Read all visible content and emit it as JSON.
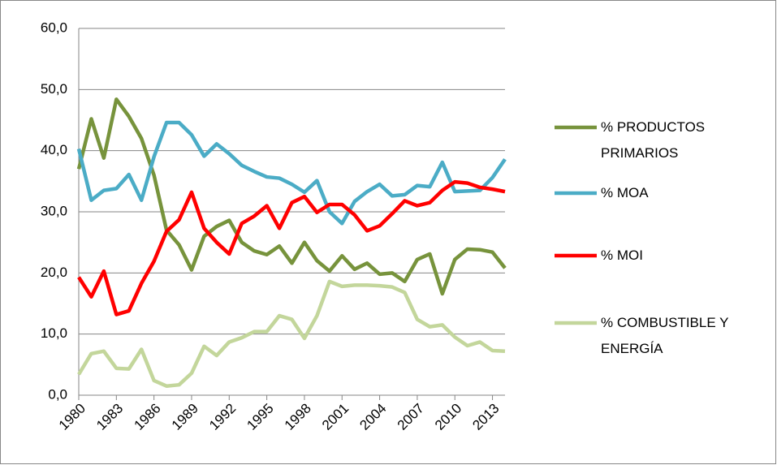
{
  "chart_data": {
    "type": "line",
    "x": [
      1980,
      1981,
      1982,
      1983,
      1984,
      1985,
      1986,
      1987,
      1988,
      1989,
      1990,
      1991,
      1992,
      1993,
      1994,
      1995,
      1996,
      1997,
      1998,
      1999,
      2000,
      2001,
      2002,
      2003,
      2004,
      2005,
      2006,
      2007,
      2008,
      2009,
      2010,
      2011,
      2012,
      2013,
      2014
    ],
    "xlim": [
      1980,
      2014
    ],
    "xticks": [
      1980,
      1983,
      1986,
      1989,
      1992,
      1995,
      1998,
      2001,
      2004,
      2007,
      2010,
      2013
    ],
    "ylim": [
      0,
      60
    ],
    "yticks": [
      {
        "value": 0,
        "label": "0,0"
      },
      {
        "value": 10,
        "label": "10,0"
      },
      {
        "value": 20,
        "label": "20,0"
      },
      {
        "value": 30,
        "label": "30,0"
      },
      {
        "value": 40,
        "label": "40,0"
      },
      {
        "value": 50,
        "label": "50,0"
      },
      {
        "value": 60,
        "label": "60,0"
      }
    ],
    "grid": true,
    "legend": "right",
    "series": [
      {
        "name": "% PRODUCTOS PRIMARIOS",
        "color": "#77933c",
        "values": [
          37,
          45.2,
          38.8,
          48.4,
          45.6,
          42,
          36,
          27,
          24.6,
          20.5,
          26,
          27.6,
          28.6,
          25,
          23.6,
          23,
          24.4,
          21.6,
          25,
          22,
          20.3,
          22.8,
          20.6,
          21.6,
          19.8,
          20,
          18.6,
          22.2,
          23.1,
          16.6,
          22.2,
          23.9,
          23.8,
          23.4,
          20.8
        ]
      },
      {
        "name": "% MOA",
        "color": "#4bacc6",
        "values": [
          40.3,
          31.9,
          33.5,
          33.8,
          36.1,
          31.9,
          39,
          44.6,
          44.6,
          42.6,
          39.1,
          41.1,
          39.5,
          37.6,
          36.6,
          35.7,
          35.5,
          34.5,
          33.2,
          35.1,
          30,
          28.1,
          31.7,
          33.3,
          34.5,
          32.6,
          32.8,
          34.3,
          34.1,
          38.1,
          33.3,
          33.4,
          33.5,
          35.6,
          38.6
        ]
      },
      {
        "name": "% MOI",
        "color": "#ff0000",
        "values": [
          19.3,
          16.1,
          20.3,
          13.2,
          13.8,
          18.3,
          21.9,
          26.8,
          28.7,
          33.2,
          27.3,
          25,
          23.1,
          28.1,
          29.3,
          31,
          27.3,
          31.5,
          32.5,
          29.9,
          31.2,
          31.2,
          29.5,
          26.9,
          27.7,
          29.7,
          31.8,
          31,
          31.5,
          33.5,
          34.9,
          34.7,
          34,
          33.7,
          33.3
        ]
      },
      {
        "name": "% COMBUSTIBLE Y ENERGÍA",
        "color": "#c3d69b",
        "values": [
          3.4,
          6.8,
          7.2,
          4.4,
          4.3,
          7.5,
          2.4,
          1.5,
          1.7,
          3.6,
          8,
          6.5,
          8.7,
          9.4,
          10.4,
          10.4,
          13,
          12.4,
          9.3,
          13,
          18.6,
          17.8,
          18,
          18,
          17.9,
          17.7,
          16.8,
          12.4,
          11.2,
          11.5,
          9.5,
          8.1,
          8.7,
          7.3,
          7.2
        ]
      }
    ]
  }
}
